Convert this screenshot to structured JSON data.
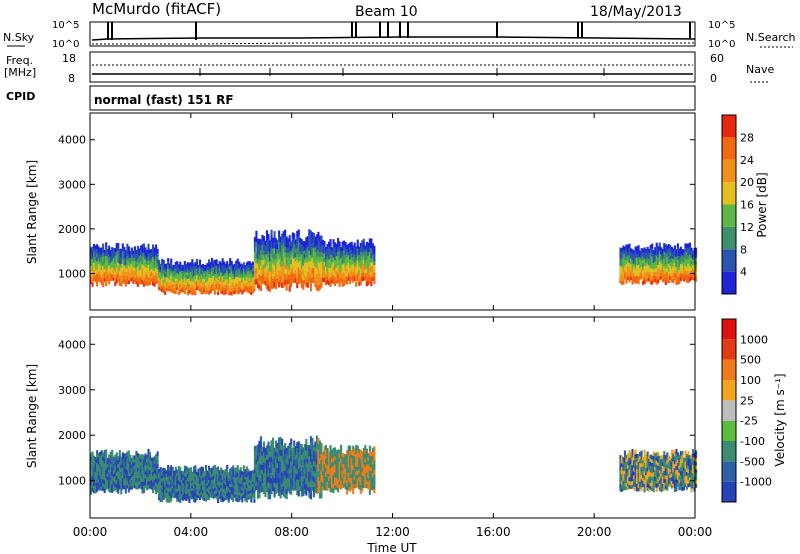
{
  "header": {
    "title": "McMurdo (fitACF)",
    "beam": "Beam 10",
    "date": "18/May/2013",
    "mode": "normal (fast) 151 RF"
  },
  "left_labels": {
    "nsky": "N.Sky",
    "freq": "Freq.",
    "mhz": "[MHz]",
    "cpid": "CPID"
  },
  "right_labels": {
    "nsearch": "N.Search",
    "nave": "Nave"
  },
  "noise_axis": {
    "top": "10^5",
    "bottom": "10^0"
  },
  "freq_axis": {
    "top": "18",
    "bottom": "8"
  },
  "nave_axis": {
    "top": "60",
    "bottom": "0"
  },
  "colors": {
    "power_scale": [
      "#1c25d8",
      "#2a54b0",
      "#3f8f6a",
      "#5db845",
      "#e3c021",
      "#f2901c",
      "#f26a10",
      "#e82810"
    ],
    "velocity_scale": [
      "#2742b5",
      "#2e61a6",
      "#3b8c70",
      "#5dbb3e",
      "#bdbdbd",
      "#f3a51e",
      "#ef7b1a",
      "#e23a12",
      "#e01010"
    ]
  },
  "chart_data": [
    {
      "type": "heatmap",
      "name": "power",
      "ylabel": "Slant Range [km]",
      "yticks": [
        "1000",
        "2000",
        "3000",
        "4000"
      ],
      "ylim": [
        180,
        4600
      ],
      "colorbar": {
        "label": "Power [dB]",
        "ticks": [
          "4",
          "8",
          "12",
          "16",
          "20",
          "24",
          "28"
        ]
      }
    },
    {
      "type": "heatmap",
      "name": "velocity",
      "ylabel": "Slant Range [km]",
      "yticks": [
        "1000",
        "2000",
        "3000",
        "4000"
      ],
      "ylim": [
        180,
        4600
      ],
      "colorbar": {
        "label": "Velocity [m s⁻¹]",
        "ticks": [
          "1000",
          "500",
          "100",
          "25",
          "-25",
          "-100",
          "-500",
          "-1000"
        ]
      }
    }
  ],
  "time_axis": {
    "ticks": [
      "00:00",
      "04:00",
      "08:00",
      "12:00",
      "16:00",
      "20:00",
      "00:00"
    ],
    "xlabel": "Time UT",
    "xlim_hours": [
      0,
      24
    ]
  },
  "echo_regions": [
    {
      "t0": 0.0,
      "t1": 2.7,
      "r0": 700,
      "r1": 1700
    },
    {
      "t0": 2.7,
      "t1": 6.5,
      "r0": 520,
      "r1": 1350
    },
    {
      "t0": 6.5,
      "t1": 9.2,
      "r0": 600,
      "r1": 2000
    },
    {
      "t0": 9.2,
      "t1": 11.3,
      "r0": 700,
      "r1": 1800
    },
    {
      "t0": 21.0,
      "t1": 24.0,
      "r0": 750,
      "r1": 1700
    }
  ]
}
